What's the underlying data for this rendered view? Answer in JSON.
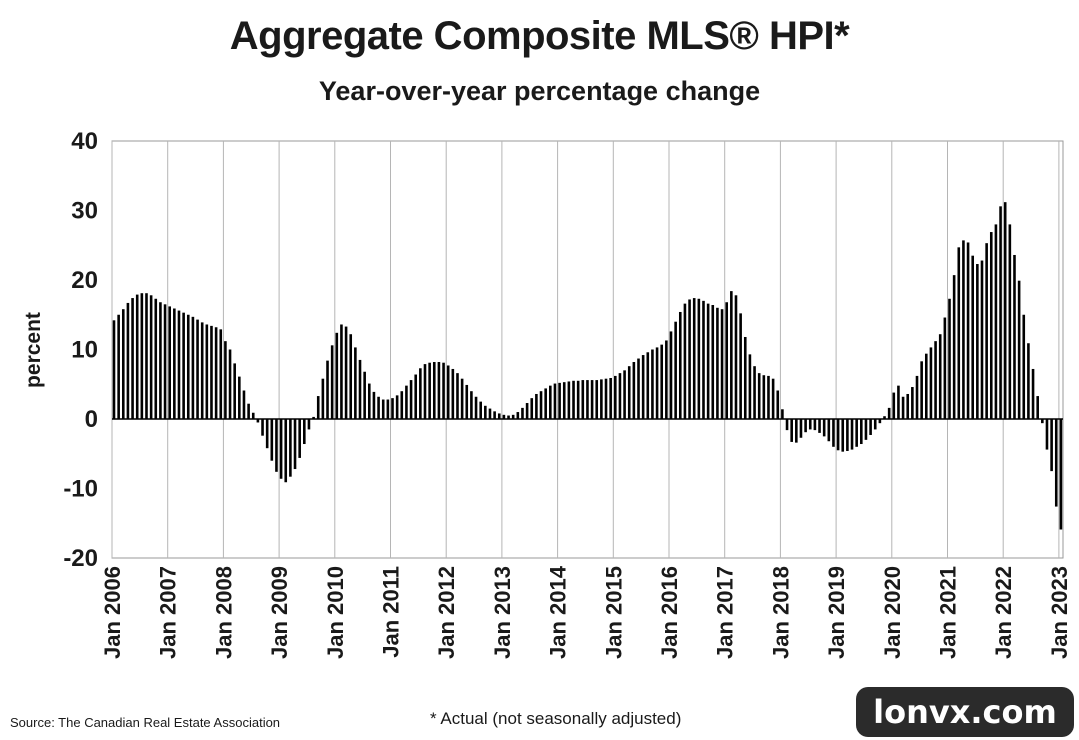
{
  "title": "Aggregate Composite MLS® HPI*",
  "subtitle": "Year-over-year percentage change",
  "source": "Source: The Canadian Real Estate Association",
  "footnote": "* Actual (not seasonally adjusted)",
  "watermark": "lonvx.com",
  "chart_data": {
    "type": "bar",
    "title": "Aggregate Composite MLS® HPI*",
    "subtitle": "Year-over-year percentage change",
    "ylabel": "percent",
    "xlabel": "",
    "ylim": [
      -20,
      40
    ],
    "yticks": [
      -20,
      -10,
      0,
      10,
      20,
      30,
      40
    ],
    "grid": "vertical gridlines at each January",
    "bar_color": "#000000",
    "x_tick_labels": [
      "Jan 2006",
      "Jan 2007",
      "Jan 2008",
      "Jan 2009",
      "Jan 2010",
      "Jan 2011",
      "Jan 2012",
      "Jan 2013",
      "Jan 2014",
      "Jan 2015",
      "Jan 2016",
      "Jan 2017",
      "Jan 2018",
      "Jan 2019",
      "Jan 2020",
      "Jan 2021",
      "Jan 2022",
      "Jan 2023"
    ],
    "series": [
      {
        "start": "Jan 2006",
        "frequency": "monthly",
        "values": [
          14.2,
          15.0,
          15.8,
          16.7,
          17.4,
          17.9,
          18.1,
          18.1,
          17.8,
          17.3,
          16.8,
          16.5,
          16.2,
          15.9,
          15.6,
          15.3,
          15.0,
          14.7,
          14.3,
          13.9,
          13.6,
          13.4,
          13.2,
          12.9,
          11.2,
          10.0,
          8.0,
          6.1,
          4.1,
          2.2,
          0.9,
          -0.5,
          -2.4,
          -4.2,
          -6.0,
          -7.6,
          -8.6,
          -9.1,
          -8.3,
          -7.2,
          -5.6,
          -3.6,
          -1.5,
          0.3,
          3.3,
          5.8,
          8.4,
          10.6,
          12.4,
          13.6,
          13.3,
          12.2,
          10.3,
          8.5,
          6.8,
          5.1,
          3.9,
          3.2,
          2.8,
          2.8,
          3.0,
          3.4,
          4.0,
          4.8,
          5.6,
          6.4,
          7.3,
          7.9,
          8.1,
          8.2,
          8.2,
          8.1,
          7.7,
          7.2,
          6.6,
          5.8,
          4.9,
          4.0,
          3.2,
          2.5,
          1.9,
          1.5,
          1.1,
          0.8,
          0.6,
          0.5,
          0.6,
          1.0,
          1.6,
          2.3,
          3.0,
          3.6,
          4.0,
          4.4,
          4.8,
          5.1,
          5.2,
          5.3,
          5.4,
          5.5,
          5.5,
          5.6,
          5.6,
          5.6,
          5.6,
          5.7,
          5.8,
          5.9,
          6.2,
          6.6,
          7.0,
          7.6,
          8.2,
          8.7,
          9.2,
          9.6,
          10.0,
          10.3,
          10.7,
          11.3,
          12.6,
          14.0,
          15.4,
          16.6,
          17.2,
          17.4,
          17.3,
          17.0,
          16.6,
          16.4,
          16.0,
          15.8,
          16.8,
          18.4,
          17.8,
          15.2,
          11.8,
          9.3,
          7.6,
          6.6,
          6.3,
          6.2,
          5.8,
          4.1,
          1.4,
          -1.6,
          -3.3,
          -3.4,
          -2.7,
          -1.9,
          -1.5,
          -1.6,
          -2.0,
          -2.5,
          -3.2,
          -4.0,
          -4.5,
          -4.7,
          -4.6,
          -4.4,
          -4.0,
          -3.6,
          -3.0,
          -2.3,
          -1.5,
          -0.6,
          0.4,
          1.6,
          3.8,
          4.8,
          3.2,
          3.6,
          4.6,
          6.2,
          8.3,
          9.4,
          10.3,
          11.2,
          12.2,
          14.6,
          17.3,
          20.7,
          24.7,
          25.7,
          25.4,
          23.5,
          22.3,
          22.8,
          25.3,
          26.9,
          28.0,
          30.6,
          31.2,
          28.0,
          23.6,
          19.9,
          15.0,
          10.9,
          7.2,
          3.3,
          -0.6,
          -4.4,
          -7.5,
          -12.6,
          -15.9
        ]
      }
    ]
  }
}
